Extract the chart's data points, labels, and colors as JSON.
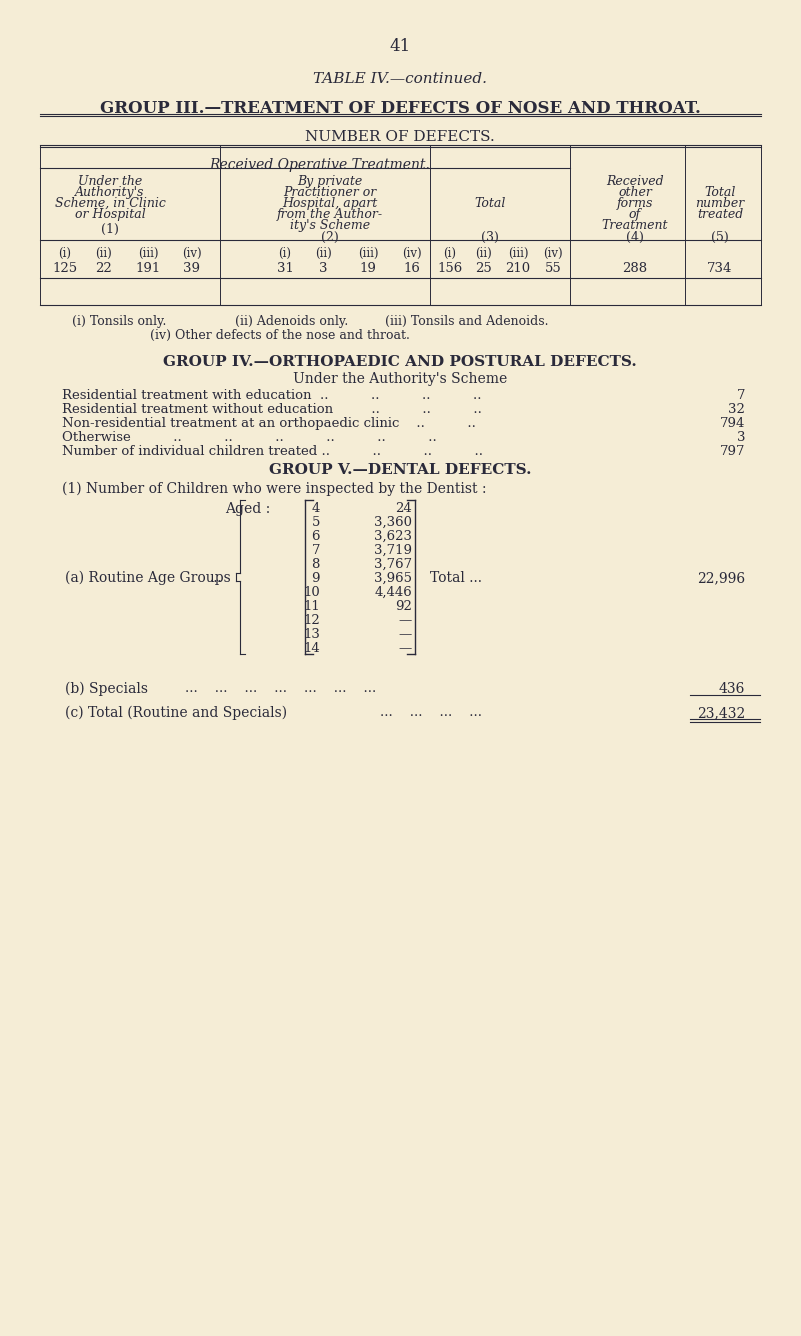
{
  "bg_color": "#f5edd6",
  "text_color": "#2a2a3a",
  "page_number": "41",
  "table_title": "TABLE IV.—continued.",
  "group3_title": "GROUP III.—TREATMENT OF DEFECTS OF NOSE AND THROAT.",
  "number_of_defects": "NUMBER OF DEFECTS.",
  "received_operative": "Received Operative Treatment.",
  "group4_title": "GROUP IV.—ORTHOPAEDIC AND POSTURAL DEFECTS.",
  "group4_subtitle": "Under the Authority's Scheme",
  "group4_rows": [
    [
      "Residential treatment with education  ..          ..          ..          ..   ",
      "7"
    ],
    [
      "Residential treatment without education         ..          ..          ..   ",
      "32"
    ],
    [
      "Non-residential treatment at an orthopaedic clinic    ..          ..   ",
      "794"
    ],
    [
      "Otherwise          ..          ..          ..          ..          ..          ..   ",
      "3"
    ],
    [
      "Number of individual children treated ..          ..          ..          ..   ",
      "797"
    ]
  ],
  "group5_title": "GROUP V.—DENTAL DEFECTS.",
  "group5_intro": "(1) Number of Children who were inspected by the Dentist :",
  "aged_label": "Aged :",
  "routine_label": "(a) Routine Age Groups",
  "age_data": [
    [
      "4",
      "24"
    ],
    [
      "5",
      "3,360"
    ],
    [
      "6",
      "3,623"
    ],
    [
      "7",
      "3,719"
    ],
    [
      "8",
      "3,767"
    ],
    [
      "9",
      "3,965"
    ],
    [
      "10",
      "4,446"
    ],
    [
      "11",
      "92"
    ],
    [
      "12",
      "—"
    ],
    [
      "13",
      "—"
    ],
    [
      "14",
      "—"
    ]
  ],
  "total_label": "Total ...",
  "total_value": "22,996",
  "specials_label": "(b) Specials",
  "specials_value": "436",
  "total_routine_label": "(c) Total (Routine and Specials)",
  "total_routine_value": "23,432"
}
